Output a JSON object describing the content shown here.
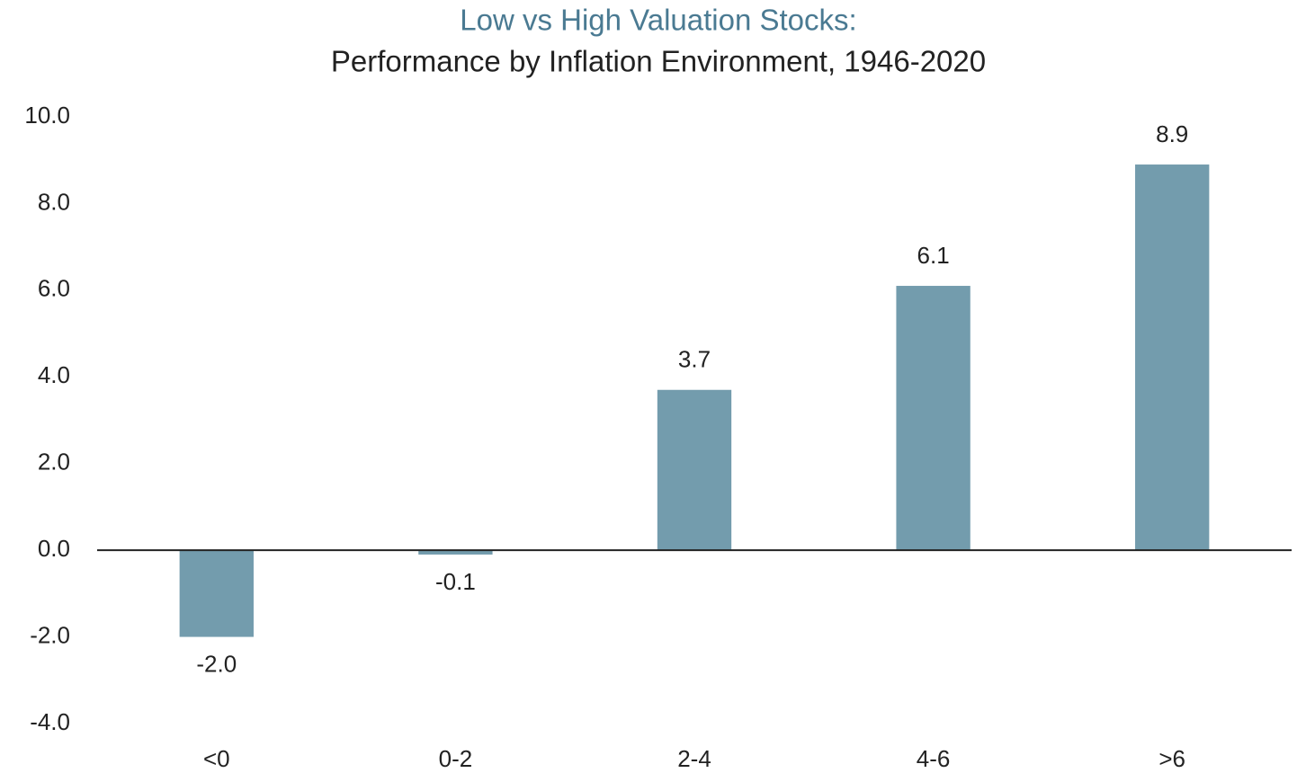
{
  "chart_data": {
    "type": "bar",
    "title": "Low vs High Valuation Stocks:",
    "subtitle": "Performance by Inflation Environment, 1946-2020",
    "categories": [
      "<0",
      "0-2",
      "2-4",
      "4-6",
      ">6"
    ],
    "values": [
      -2.0,
      -0.1,
      3.7,
      6.1,
      8.9
    ],
    "value_labels": [
      "-2.0",
      "-0.1",
      "3.7",
      "6.1",
      "8.9"
    ],
    "color": "#739cad",
    "ylim": [
      -4,
      10
    ],
    "yticks": [
      {
        "value": -4,
        "label": "-4.0"
      },
      {
        "value": -2,
        "label": "-2.0"
      },
      {
        "value": 0,
        "label": "0.0"
      },
      {
        "value": 2,
        "label": "2.0"
      },
      {
        "value": 4,
        "label": "4.0"
      },
      {
        "value": 6,
        "label": "6.0"
      },
      {
        "value": 8,
        "label": "8.0"
      },
      {
        "value": 10,
        "label": "10.0"
      }
    ],
    "grid": false
  }
}
